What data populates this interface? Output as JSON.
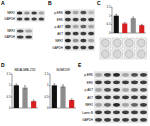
{
  "chart_data": [
    {
      "type": "bar",
      "categories": [
        null,
        null,
        null,
        null
      ],
      "values": [
        1,
        0.55,
        0.85,
        0.45
      ],
      "errors": [
        0.08,
        0.06,
        0.07,
        0.05
      ],
      "colors": [
        "#111111",
        "#d62020",
        "#8c8c8c",
        "#d62020"
      ],
      "ylim": [
        0,
        1.5
      ],
      "yticks": [
        0,
        0.5,
        1,
        1.5
      ]
    },
    {
      "type": "bar",
      "title": "MDA-MB-231",
      "categories": [
        null,
        null,
        null
      ],
      "values": [
        1,
        0.9,
        0.3
      ],
      "errors": [
        0.06,
        0.08,
        0.05
      ],
      "colors": [
        "#111111",
        "#8c8c8c",
        "#d62020"
      ],
      "ylim": [
        0,
        1.5
      ],
      "yticks": [
        0,
        0.5,
        1,
        1.5
      ]
    },
    {
      "type": "bar",
      "title": "SUM159",
      "categories": [
        null,
        null,
        null
      ],
      "values": [
        1,
        0.95,
        0.35
      ],
      "errors": [
        0.07,
        0.07,
        0.05
      ],
      "colors": [
        "#111111",
        "#8c8c8c",
        "#d62020"
      ],
      "ylim": [
        0,
        1.5
      ],
      "yticks": [
        0,
        0.5,
        1,
        1.5
      ]
    }
  ],
  "figure": {
    "panel_letters": [
      "A",
      "B",
      "C",
      "D",
      "E"
    ],
    "blots": [
      {
        "rows": [
          {
            "label": "NRF2",
            "bands": [
              0.9,
              0.4,
              0.8,
              0.3
            ]
          },
          {
            "label": "GAPDH",
            "bands": [
              0.8,
              0.8,
              0.8,
              0.8
            ]
          }
        ]
      },
      {
        "rows": [
          {
            "label": "NRF2",
            "bands": [
              0.7,
              0.3
            ]
          },
          {
            "label": "GAPDH",
            "bands": [
              0.8,
              0.8
            ]
          }
        ]
      },
      {
        "rows": [
          {
            "label": "p-ERK",
            "bands": [
              0.8,
              0.3,
              0.7,
              0.2
            ]
          },
          {
            "label": "ERK",
            "bands": [
              0.8,
              0.8,
              0.8,
              0.8
            ]
          },
          {
            "label": "p-AKT",
            "bands": [
              0.7,
              0.3,
              0.6,
              0.3
            ]
          },
          {
            "label": "AKT",
            "bands": [
              0.8,
              0.8,
              0.8,
              0.8
            ]
          },
          {
            "label": "NRF2",
            "bands": [
              0.9,
              0.4,
              0.8,
              0.3
            ]
          },
          {
            "label": "GAPDH",
            "bands": [
              0.8,
              0.8,
              0.8,
              0.8
            ]
          }
        ]
      },
      {
        "rows": [
          {
            "label": "p-ERK",
            "bands": [
              0.3,
              0.8,
              0.9,
              0.3,
              0.7,
              0.8
            ]
          },
          {
            "label": "ERK",
            "bands": [
              0.8,
              0.8,
              0.8,
              0.8,
              0.8,
              0.8
            ]
          },
          {
            "label": "p-AKT",
            "bands": [
              0.3,
              0.7,
              0.8,
              0.3,
              0.6,
              0.7
            ]
          },
          {
            "label": "AKT",
            "bands": [
              0.8,
              0.8,
              0.8,
              0.8,
              0.8,
              0.8
            ]
          },
          {
            "label": "NRF2",
            "bands": [
              0.3,
              0.6,
              0.9,
              0.3,
              0.6,
              0.8
            ]
          },
          {
            "label": "Lamin B",
            "bands": [
              0.8,
              0.8,
              0.8,
              0.8,
              0.8,
              0.8
            ]
          },
          {
            "label": "GAPDH",
            "bands": [
              0.8,
              0.8,
              0.8,
              0.8,
              0.8,
              0.8
            ]
          }
        ]
      }
    ]
  }
}
